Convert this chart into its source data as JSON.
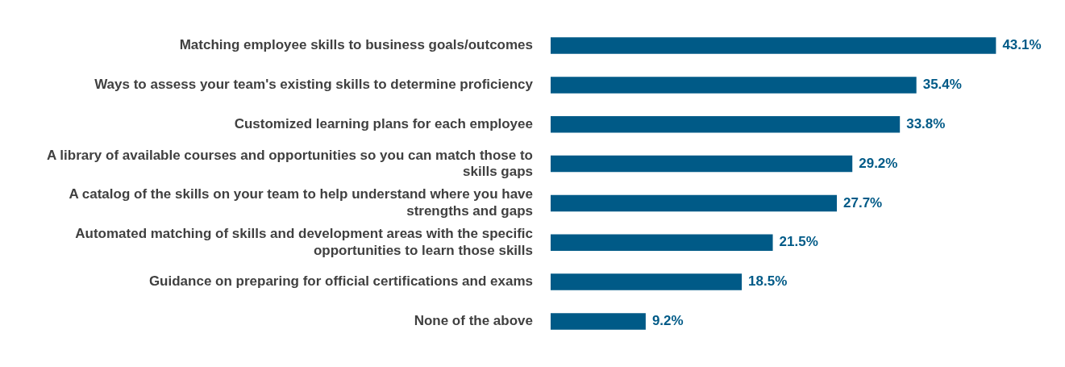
{
  "chart_data": {
    "type": "bar",
    "orientation": "horizontal",
    "categories": [
      "Matching employee skills to business goals/outcomes",
      "Ways to assess your team's existing skills to determine proficiency",
      "Customized learning plans for each employee",
      "A library of available courses and opportunities so you can match those to skills gaps",
      "A catalog of the skills on your team to help understand where you have strengths and gaps",
      "Automated matching of skills and development areas with the specific opportunities to learn those skills",
      "Guidance on preparing for official certifications and exams",
      "None of the above"
    ],
    "values": [
      43.1,
      35.4,
      33.8,
      29.2,
      27.7,
      21.5,
      18.5,
      9.2
    ],
    "value_labels": [
      "43.1%",
      "35.4%",
      "33.8%",
      "29.2%",
      "27.7%",
      "21.5%",
      "18.5%",
      "9.2%"
    ],
    "color": "#005a87",
    "legend": false
  }
}
